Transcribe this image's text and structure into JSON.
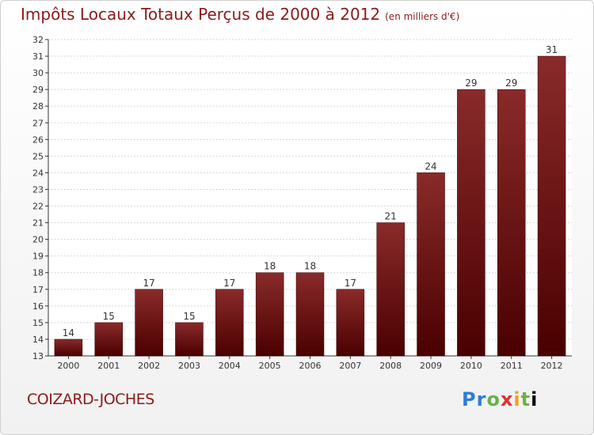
{
  "title": "Impôts Locaux Totaux Perçus de 2000 à 2012",
  "unit": "(en milliers d'€)",
  "commune": "COIZARD-JOCHES",
  "logo_letters": [
    "P",
    "r",
    "o",
    "x",
    "i",
    "t",
    "i"
  ],
  "colors": {
    "bar": "#6e0f0f",
    "title": "#8b1a1a",
    "grid": "#d8d8d8"
  },
  "chart_data": {
    "type": "bar",
    "title": "Impôts Locaux Totaux Perçus de 2000 à 2012",
    "categories": [
      "2000",
      "2001",
      "2002",
      "2003",
      "2004",
      "2005",
      "2006",
      "2007",
      "2008",
      "2009",
      "2010",
      "2011",
      "2012"
    ],
    "values": [
      14,
      15,
      17,
      15,
      17,
      18,
      18,
      17,
      21,
      24,
      29,
      29,
      31
    ],
    "ylim": [
      13,
      32
    ],
    "yticks": [
      13,
      14,
      15,
      16,
      17,
      18,
      19,
      20,
      21,
      22,
      23,
      24,
      25,
      26,
      27,
      28,
      29,
      30,
      31,
      32
    ],
    "grid": true,
    "data_labels": true
  }
}
